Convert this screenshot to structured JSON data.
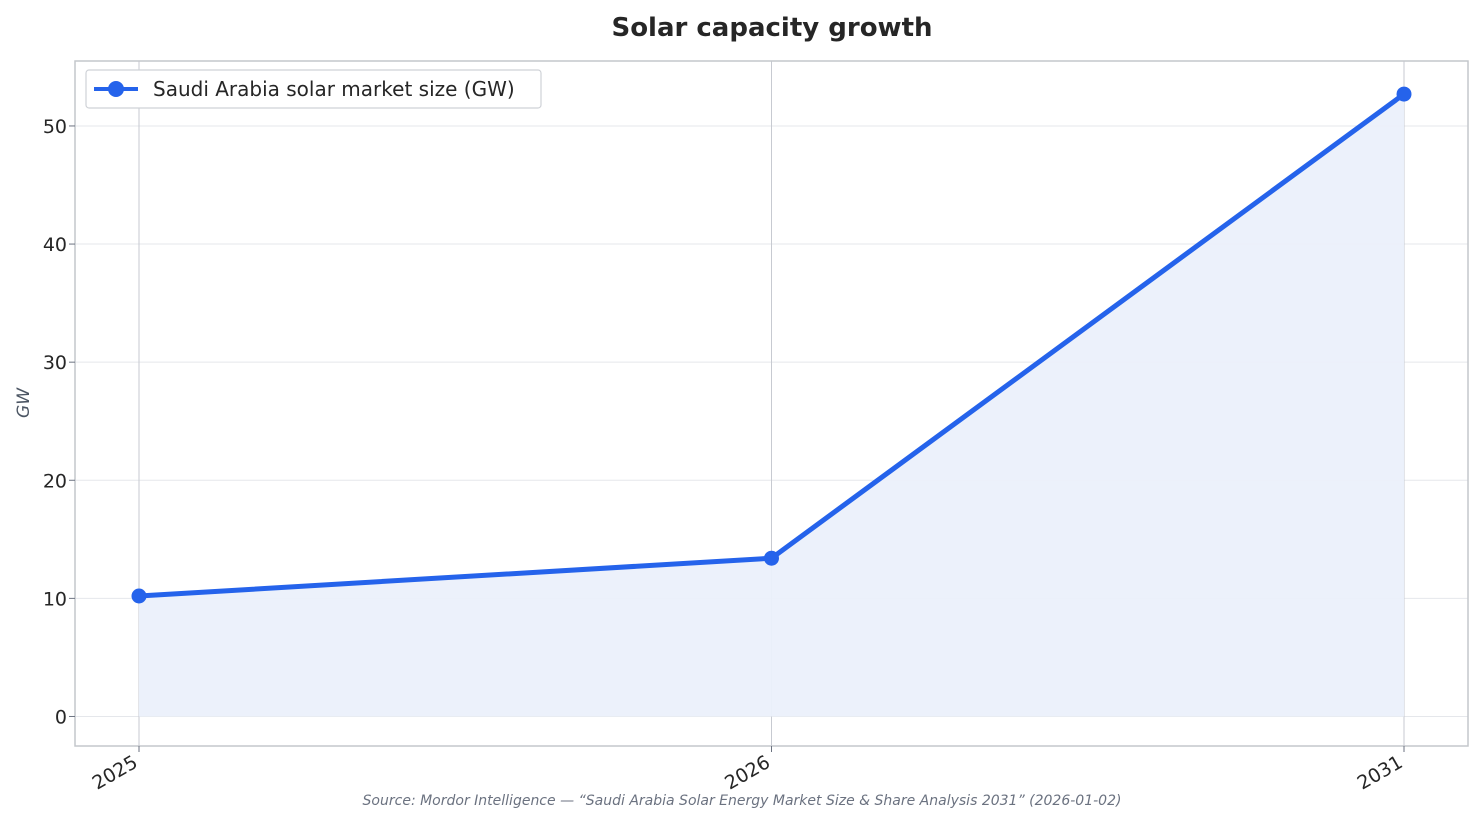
{
  "chart_data": {
    "type": "line",
    "title": "Solar capacity growth",
    "xlabel": "",
    "ylabel": "GW",
    "categories": [
      "2025",
      "2026",
      "2031"
    ],
    "series": [
      {
        "name": "Saudi Arabia solar market size (GW)",
        "values": [
          10.2,
          13.4,
          52.7
        ]
      }
    ],
    "ylim": [
      -2.5,
      55.5
    ],
    "yticks": [
      0,
      10,
      20,
      30,
      40,
      50
    ],
    "ytick_labels": [
      "0",
      "10",
      "20",
      "30",
      "40",
      "50"
    ],
    "grid": true,
    "area_fill": true,
    "legend": "top-left",
    "source": "Source: Mordor Intelligence — “Saudi Arabia Solar Energy Market Size & Share Analysis 2031” (2026-01-02)"
  },
  "colors": {
    "series": "#2563eb",
    "area": "#ebf0fb",
    "grid": "#e5e7eb",
    "vgrid": "#c7cad1",
    "frame": "#c4c7cc"
  }
}
